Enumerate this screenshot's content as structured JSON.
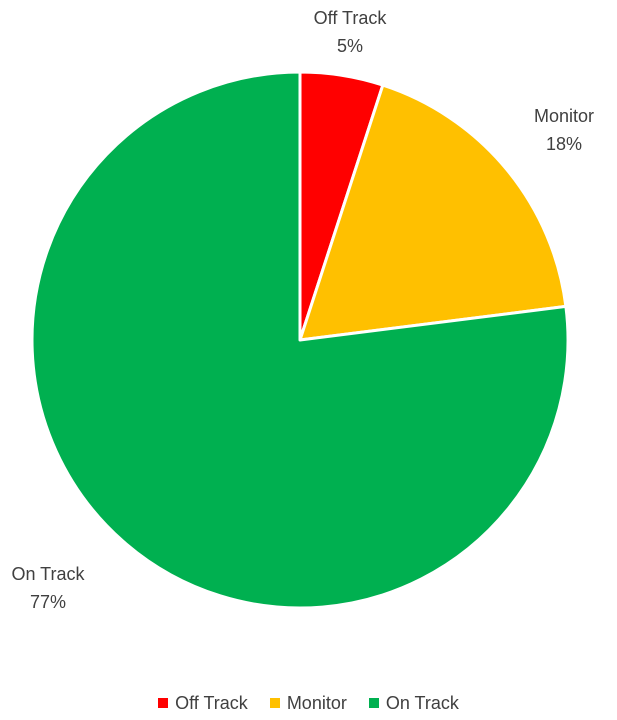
{
  "chart_data": {
    "type": "pie",
    "title": "",
    "start_angle_deg": 0,
    "direction": "clockwise",
    "slices": [
      {
        "label": "Off Track",
        "value": 5,
        "display": "5%",
        "color": "#FF0000"
      },
      {
        "label": "Monitor",
        "value": 18,
        "display": "18%",
        "color": "#FFC000"
      },
      {
        "label": "On Track",
        "value": 77,
        "display": "77%",
        "color": "#00B050"
      }
    ],
    "legend": {
      "position": "bottom",
      "entries": [
        {
          "label": "Off Track",
          "color": "#FF0000"
        },
        {
          "label": "Monitor",
          "color": "#FFC000"
        },
        {
          "label": "On Track",
          "color": "#00B050"
        }
      ]
    },
    "border_color": "#FFFFFF"
  }
}
